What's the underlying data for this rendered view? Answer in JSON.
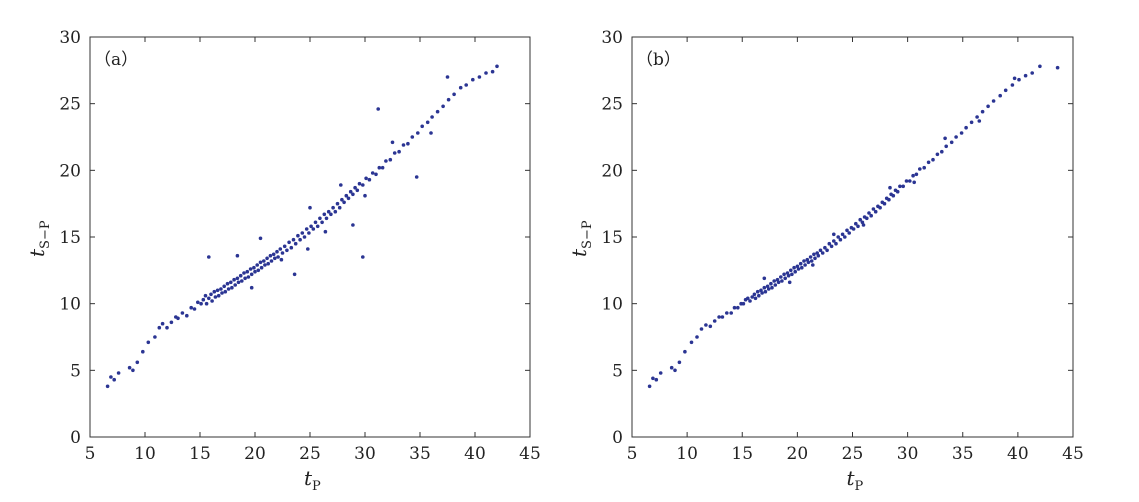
{
  "chart_data": [
    {
      "type": "scatter",
      "panel_label": "（a）",
      "xlabel": "t",
      "xlabel_sub": "P",
      "ylabel": "t",
      "ylabel_sub": "S−P",
      "xlim": [
        5,
        45
      ],
      "ylim": [
        0,
        30
      ],
      "xticks": [
        "5",
        "10",
        "15",
        "20",
        "25",
        "30",
        "35",
        "40",
        "45"
      ],
      "yticks": [
        "0",
        "5",
        "10",
        "15",
        "20",
        "25",
        "30"
      ],
      "grid": false,
      "marker_color": "#2b3593",
      "points": [
        [
          6.6,
          3.8
        ],
        [
          6.9,
          4.5
        ],
        [
          7.2,
          4.3
        ],
        [
          7.6,
          4.8
        ],
        [
          8.6,
          5.2
        ],
        [
          8.9,
          5.0
        ],
        [
          9.3,
          5.6
        ],
        [
          9.8,
          6.4
        ],
        [
          10.3,
          7.1
        ],
        [
          10.9,
          7.5
        ],
        [
          11.3,
          8.2
        ],
        [
          11.6,
          8.5
        ],
        [
          12.0,
          8.2
        ],
        [
          12.4,
          8.6
        ],
        [
          12.8,
          9.0
        ],
        [
          13.0,
          8.9
        ],
        [
          13.4,
          9.3
        ],
        [
          13.8,
          9.1
        ],
        [
          14.2,
          9.7
        ],
        [
          14.5,
          9.6
        ],
        [
          14.8,
          10.1
        ],
        [
          15.1,
          10.0
        ],
        [
          15.3,
          10.3
        ],
        [
          15.5,
          10.6
        ],
        [
          15.6,
          10.0
        ],
        [
          15.8,
          10.4
        ],
        [
          16.0,
          10.7
        ],
        [
          16.1,
          10.2
        ],
        [
          16.3,
          10.9
        ],
        [
          16.4,
          10.5
        ],
        [
          16.6,
          11.0
        ],
        [
          16.7,
          10.6
        ],
        [
          16.9,
          11.1
        ],
        [
          17.0,
          10.8
        ],
        [
          17.2,
          11.3
        ],
        [
          17.3,
          10.9
        ],
        [
          17.5,
          11.5
        ],
        [
          17.6,
          11.1
        ],
        [
          17.8,
          11.6
        ],
        [
          17.9,
          11.2
        ],
        [
          18.1,
          11.8
        ],
        [
          18.2,
          11.4
        ],
        [
          18.4,
          11.9
        ],
        [
          18.5,
          11.6
        ],
        [
          18.7,
          12.1
        ],
        [
          18.8,
          11.7
        ],
        [
          19.0,
          12.3
        ],
        [
          19.1,
          11.9
        ],
        [
          19.3,
          12.4
        ],
        [
          19.4,
          12.0
        ],
        [
          19.6,
          12.6
        ],
        [
          19.7,
          12.2
        ],
        [
          19.9,
          12.7
        ],
        [
          20.0,
          12.4
        ],
        [
          20.2,
          12.9
        ],
        [
          20.3,
          12.5
        ],
        [
          20.5,
          13.1
        ],
        [
          20.6,
          12.7
        ],
        [
          20.8,
          13.2
        ],
        [
          20.9,
          12.9
        ],
        [
          21.1,
          13.4
        ],
        [
          21.2,
          13.0
        ],
        [
          21.4,
          13.6
        ],
        [
          21.5,
          13.2
        ],
        [
          21.7,
          13.7
        ],
        [
          21.8,
          13.4
        ],
        [
          22.0,
          13.9
        ],
        [
          22.1,
          13.5
        ],
        [
          22.3,
          14.1
        ],
        [
          22.5,
          13.8
        ],
        [
          22.7,
          14.3
        ],
        [
          22.9,
          14.0
        ],
        [
          23.1,
          14.6
        ],
        [
          23.3,
          14.2
        ],
        [
          23.5,
          14.8
        ],
        [
          23.7,
          14.5
        ],
        [
          23.9,
          15.1
        ],
        [
          24.1,
          14.8
        ],
        [
          24.3,
          15.3
        ],
        [
          24.5,
          15.0
        ],
        [
          24.7,
          15.6
        ],
        [
          24.9,
          15.3
        ],
        [
          25.1,
          15.8
        ],
        [
          25.3,
          15.6
        ],
        [
          25.5,
          16.1
        ],
        [
          25.7,
          15.8
        ],
        [
          25.9,
          16.4
        ],
        [
          26.1,
          16.1
        ],
        [
          26.3,
          16.7
        ],
        [
          26.5,
          16.4
        ],
        [
          26.7,
          16.9
        ],
        [
          26.9,
          16.7
        ],
        [
          27.1,
          17.2
        ],
        [
          27.3,
          16.9
        ],
        [
          27.5,
          17.5
        ],
        [
          27.7,
          17.2
        ],
        [
          27.9,
          17.8
        ],
        [
          28.1,
          17.6
        ],
        [
          28.3,
          18.1
        ],
        [
          28.5,
          17.9
        ],
        [
          28.7,
          18.4
        ],
        [
          28.9,
          18.2
        ],
        [
          29.1,
          18.7
        ],
        [
          29.3,
          18.5
        ],
        [
          29.5,
          19.0
        ],
        [
          29.8,
          18.9
        ],
        [
          30.1,
          19.4
        ],
        [
          30.4,
          19.3
        ],
        [
          30.7,
          19.8
        ],
        [
          31.0,
          19.7
        ],
        [
          31.3,
          20.2
        ],
        [
          31.6,
          20.2
        ],
        [
          31.9,
          20.7
        ],
        [
          32.3,
          20.8
        ],
        [
          32.7,
          21.3
        ],
        [
          33.1,
          21.4
        ],
        [
          33.5,
          21.9
        ],
        [
          33.9,
          22.0
        ],
        [
          34.3,
          22.5
        ],
        [
          34.8,
          22.8
        ],
        [
          35.2,
          23.3
        ],
        [
          35.7,
          23.6
        ],
        [
          36.1,
          24.0
        ],
        [
          36.6,
          24.4
        ],
        [
          37.1,
          24.8
        ],
        [
          37.6,
          25.3
        ],
        [
          38.1,
          25.7
        ],
        [
          38.7,
          26.2
        ],
        [
          39.2,
          26.4
        ],
        [
          39.8,
          26.8
        ],
        [
          40.4,
          27.0
        ],
        [
          41.0,
          27.3
        ],
        [
          41.6,
          27.4
        ],
        [
          42.0,
          27.8
        ],
        [
          20.5,
          14.9
        ],
        [
          22.4,
          13.3
        ],
        [
          25.0,
          17.2
        ],
        [
          27.8,
          18.9
        ],
        [
          30.0,
          18.1
        ],
        [
          29.8,
          13.5
        ],
        [
          31.2,
          24.6
        ],
        [
          23.6,
          12.2
        ],
        [
          18.4,
          13.6
        ],
        [
          15.8,
          13.5
        ],
        [
          26.4,
          15.4
        ],
        [
          34.7,
          19.5
        ],
        [
          37.5,
          27.0
        ],
        [
          36.0,
          22.8
        ],
        [
          28.9,
          15.9
        ],
        [
          19.7,
          11.2
        ],
        [
          24.8,
          14.1
        ],
        [
          32.5,
          22.1
        ]
      ]
    },
    {
      "type": "scatter",
      "panel_label": "（b）",
      "xlabel": "t",
      "xlabel_sub": "P",
      "ylabel": "t",
      "ylabel_sub": "S−P",
      "xlim": [
        5,
        45
      ],
      "ylim": [
        0,
        30
      ],
      "xticks": [
        "5",
        "10",
        "15",
        "20",
        "25",
        "30",
        "35",
        "40",
        "45"
      ],
      "yticks": [
        "0",
        "5",
        "10",
        "15",
        "20",
        "25",
        "30"
      ],
      "grid": false,
      "marker_color": "#2b3593",
      "points": [
        [
          6.6,
          3.8
        ],
        [
          6.9,
          4.4
        ],
        [
          7.2,
          4.3
        ],
        [
          7.6,
          4.8
        ],
        [
          8.6,
          5.2
        ],
        [
          8.9,
          5.0
        ],
        [
          9.3,
          5.6
        ],
        [
          9.8,
          6.4
        ],
        [
          10.4,
          7.1
        ],
        [
          10.9,
          7.5
        ],
        [
          11.3,
          8.1
        ],
        [
          11.7,
          8.4
        ],
        [
          12.1,
          8.3
        ],
        [
          12.5,
          8.7
        ],
        [
          12.9,
          9.0
        ],
        [
          13.2,
          9.0
        ],
        [
          13.6,
          9.3
        ],
        [
          14.0,
          9.3
        ],
        [
          14.3,
          9.7
        ],
        [
          14.6,
          9.7
        ],
        [
          14.9,
          10.0
        ],
        [
          15.1,
          10.0
        ],
        [
          15.3,
          10.3
        ],
        [
          15.5,
          10.4
        ],
        [
          15.7,
          10.2
        ],
        [
          15.9,
          10.5
        ],
        [
          16.1,
          10.7
        ],
        [
          16.2,
          10.4
        ],
        [
          16.4,
          10.9
        ],
        [
          16.5,
          10.6
        ],
        [
          16.7,
          11.0
        ],
        [
          16.8,
          10.8
        ],
        [
          17.0,
          11.2
        ],
        [
          17.1,
          10.9
        ],
        [
          17.3,
          11.3
        ],
        [
          17.4,
          11.1
        ],
        [
          17.6,
          11.5
        ],
        [
          17.7,
          11.2
        ],
        [
          17.9,
          11.7
        ],
        [
          18.0,
          11.4
        ],
        [
          18.2,
          11.8
        ],
        [
          18.3,
          11.6
        ],
        [
          18.5,
          12.0
        ],
        [
          18.6,
          11.7
        ],
        [
          18.8,
          12.2
        ],
        [
          18.9,
          11.9
        ],
        [
          19.1,
          12.3
        ],
        [
          19.2,
          12.1
        ],
        [
          19.4,
          12.5
        ],
        [
          19.5,
          12.2
        ],
        [
          19.7,
          12.7
        ],
        [
          19.8,
          12.4
        ],
        [
          20.0,
          12.8
        ],
        [
          20.1,
          12.6
        ],
        [
          20.3,
          13.0
        ],
        [
          20.4,
          12.7
        ],
        [
          20.6,
          13.2
        ],
        [
          20.7,
          12.9
        ],
        [
          20.9,
          13.3
        ],
        [
          21.0,
          13.1
        ],
        [
          21.2,
          13.5
        ],
        [
          21.3,
          13.2
        ],
        [
          21.5,
          13.7
        ],
        [
          21.6,
          13.4
        ],
        [
          21.8,
          13.8
        ],
        [
          21.9,
          13.6
        ],
        [
          22.1,
          14.0
        ],
        [
          22.3,
          13.8
        ],
        [
          22.5,
          14.2
        ],
        [
          22.7,
          14.0
        ],
        [
          22.9,
          14.5
        ],
        [
          23.1,
          14.3
        ],
        [
          23.3,
          14.7
        ],
        [
          23.5,
          14.5
        ],
        [
          23.7,
          15.0
        ],
        [
          23.9,
          14.8
        ],
        [
          24.1,
          15.2
        ],
        [
          24.3,
          15.0
        ],
        [
          24.5,
          15.5
        ],
        [
          24.7,
          15.3
        ],
        [
          24.9,
          15.7
        ],
        [
          25.1,
          15.6
        ],
        [
          25.3,
          16.0
        ],
        [
          25.5,
          15.8
        ],
        [
          25.7,
          16.3
        ],
        [
          25.9,
          16.1
        ],
        [
          26.1,
          16.5
        ],
        [
          26.3,
          16.4
        ],
        [
          26.5,
          16.8
        ],
        [
          26.7,
          16.6
        ],
        [
          26.9,
          17.1
        ],
        [
          27.1,
          16.9
        ],
        [
          27.3,
          17.3
        ],
        [
          27.5,
          17.2
        ],
        [
          27.7,
          17.6
        ],
        [
          27.9,
          17.5
        ],
        [
          28.1,
          17.9
        ],
        [
          28.3,
          17.8
        ],
        [
          28.5,
          18.2
        ],
        [
          28.7,
          18.1
        ],
        [
          28.9,
          18.5
        ],
        [
          29.1,
          18.4
        ],
        [
          29.3,
          18.8
        ],
        [
          29.6,
          18.8
        ],
        [
          29.9,
          19.2
        ],
        [
          30.2,
          19.2
        ],
        [
          30.5,
          19.6
        ],
        [
          30.8,
          19.7
        ],
        [
          31.1,
          20.1
        ],
        [
          31.5,
          20.2
        ],
        [
          31.9,
          20.6
        ],
        [
          32.3,
          20.8
        ],
        [
          32.7,
          21.2
        ],
        [
          33.1,
          21.4
        ],
        [
          33.5,
          21.8
        ],
        [
          34.0,
          22.1
        ],
        [
          34.4,
          22.5
        ],
        [
          34.9,
          22.8
        ],
        [
          35.3,
          23.2
        ],
        [
          35.8,
          23.6
        ],
        [
          36.3,
          24.0
        ],
        [
          36.8,
          24.4
        ],
        [
          37.3,
          24.8
        ],
        [
          37.8,
          25.2
        ],
        [
          38.4,
          25.6
        ],
        [
          38.9,
          26.0
        ],
        [
          39.5,
          26.4
        ],
        [
          40.1,
          26.8
        ],
        [
          40.7,
          27.1
        ],
        [
          41.3,
          27.3
        ],
        [
          42.0,
          27.8
        ],
        [
          43.6,
          27.7
        ],
        [
          17.0,
          11.9
        ],
        [
          19.3,
          11.6
        ],
        [
          21.4,
          12.9
        ],
        [
          23.3,
          15.2
        ],
        [
          26.0,
          15.9
        ],
        [
          28.4,
          18.7
        ],
        [
          30.6,
          19.1
        ],
        [
          33.4,
          22.4
        ],
        [
          36.5,
          23.7
        ],
        [
          39.7,
          26.9
        ]
      ]
    }
  ]
}
